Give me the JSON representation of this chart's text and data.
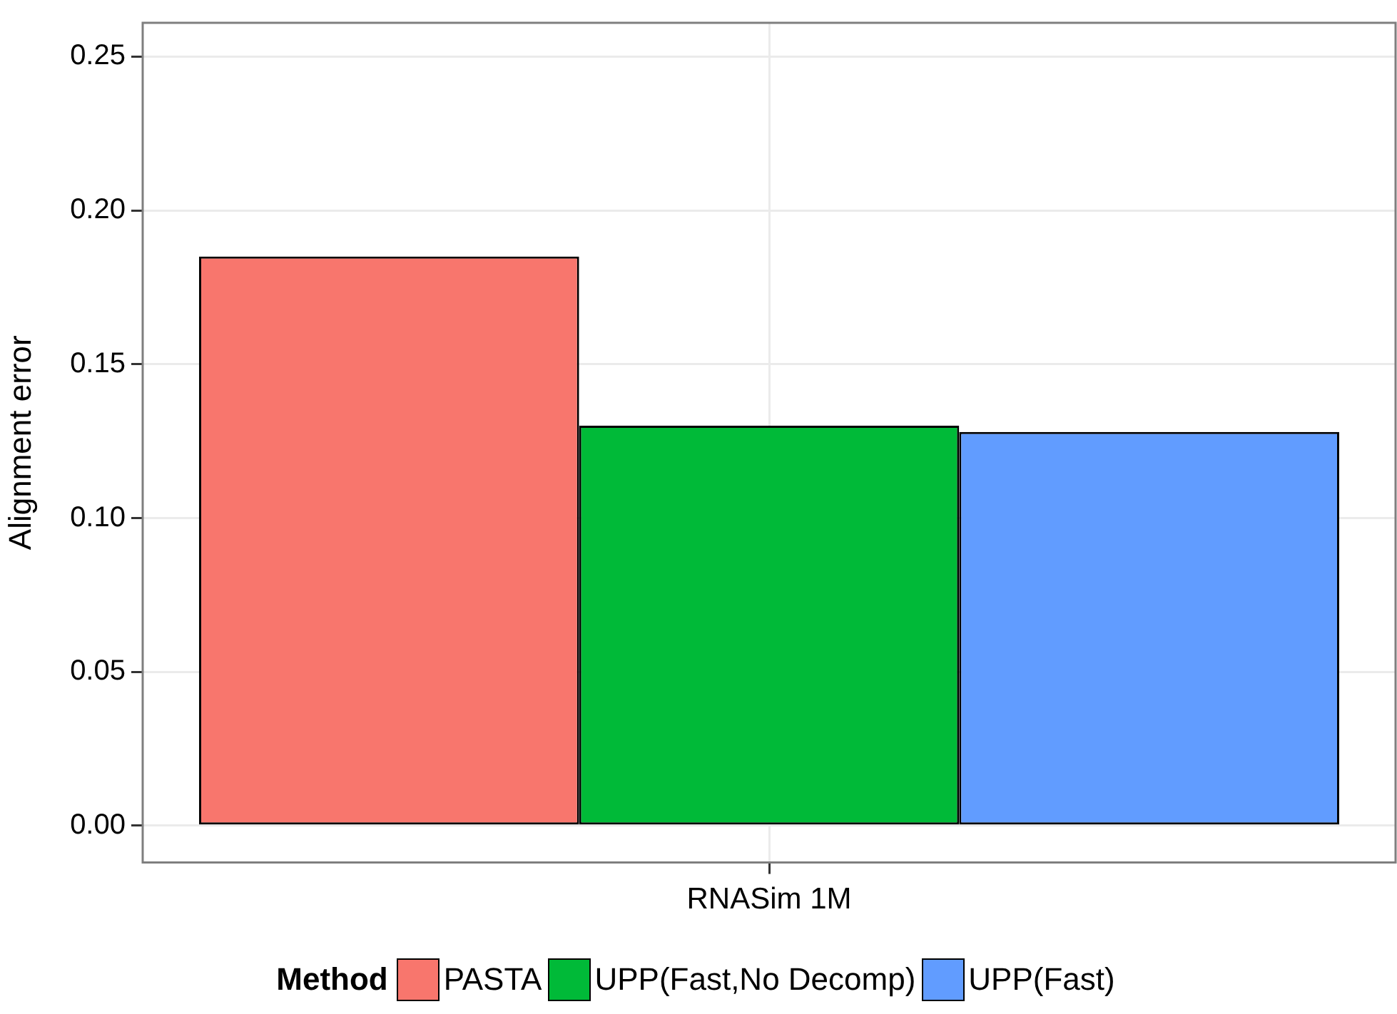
{
  "chart_data": {
    "type": "bar",
    "ylabel": "Alignment error",
    "legend_title": "Method",
    "categories": [
      "RNASim 1M"
    ],
    "series": [
      {
        "name": "PASTA",
        "color": "#f8766d",
        "values": [
          0.185
        ]
      },
      {
        "name": "UPP(Fast,No Decomp)",
        "color": "#00ba38",
        "values": [
          0.13
        ]
      },
      {
        "name": "UPP(Fast)",
        "color": "#619cff",
        "values": [
          0.128
        ]
      }
    ],
    "ylim": [
      -0.012,
      0.261
    ],
    "yticks": [
      {
        "value": 0,
        "label": "0.00"
      },
      {
        "value": 0.05,
        "label": "0.05"
      },
      {
        "value": 0.1,
        "label": "0.10"
      },
      {
        "value": 0.15,
        "label": "0.15"
      },
      {
        "value": 0.2,
        "label": "0.20"
      },
      {
        "value": 0.25,
        "label": "0.25"
      }
    ],
    "grid": true,
    "legend": "bottom"
  }
}
